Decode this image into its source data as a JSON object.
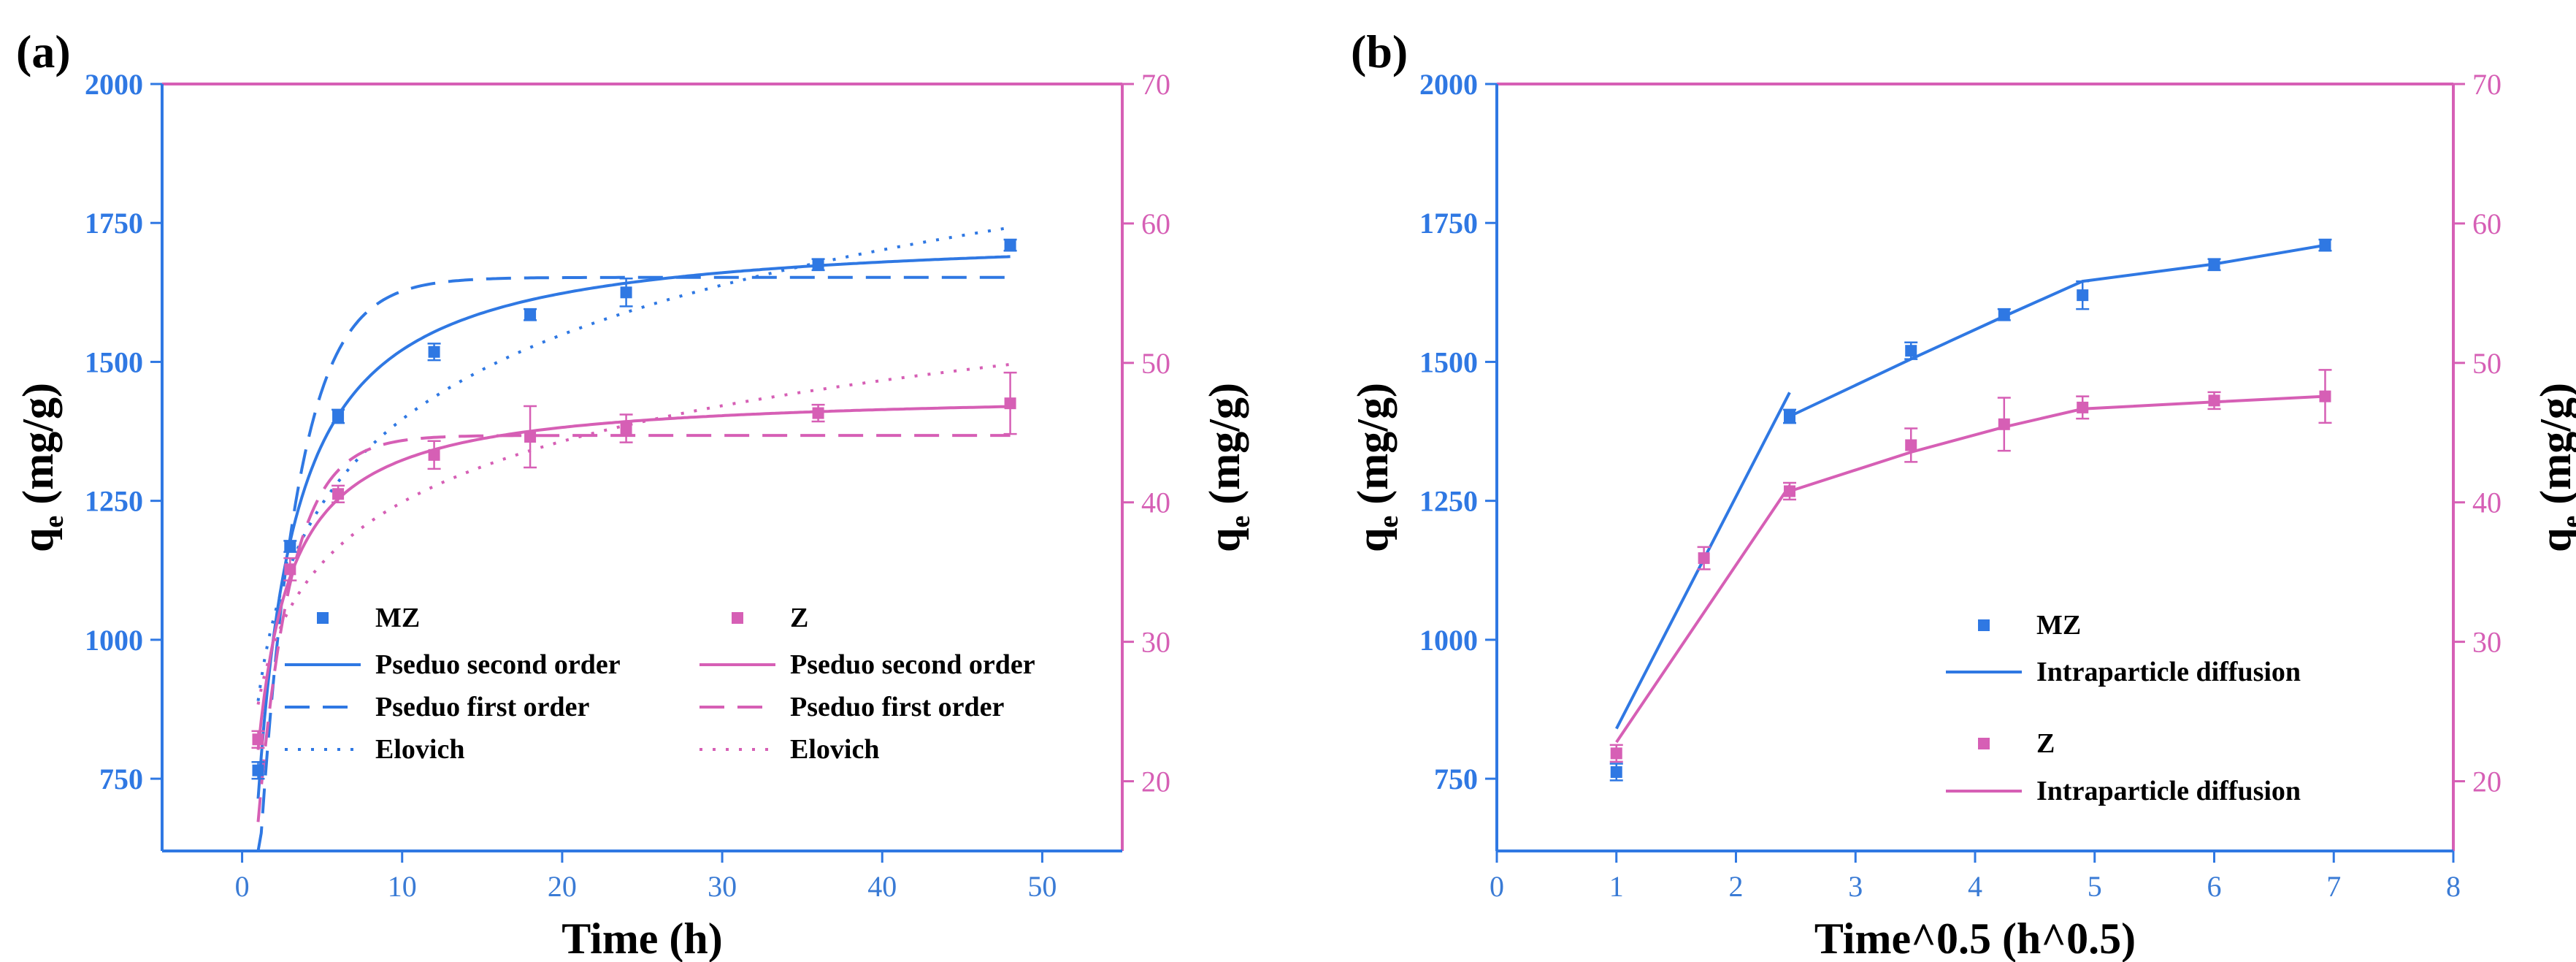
{
  "colors": {
    "mz": "#2f78e3",
    "z": "#d65fb5",
    "left_axis": "#2f78e3",
    "right_axis": "#d65fb5"
  },
  "chart_data": [
    {
      "panel_label": "(a)",
      "type": "scatter",
      "xlabel": "Time (h)",
      "ylabel_left": "q",
      "ylabel_left_sub": "e",
      "ylabel_left_unit": " (mg/g)",
      "ylabel_right": "q",
      "ylabel_right_sub": "e",
      "ylabel_right_unit": " (mg/g)",
      "xlim": [
        -5,
        55
      ],
      "ylim_left": [
        620,
        2000
      ],
      "ylim_right": [
        15,
        70
      ],
      "xticks": [
        0,
        10,
        20,
        30,
        40,
        50
      ],
      "yticks_left": [
        750,
        1000,
        1250,
        1500,
        1750,
        2000
      ],
      "yticks_right": [
        20,
        30,
        40,
        50,
        60,
        70
      ],
      "series": [
        {
          "name": "MZ",
          "axis": "left",
          "color": "#2f78e3",
          "x": [
            1,
            3,
            6,
            12,
            18,
            24,
            36,
            48
          ],
          "y": [
            765,
            1168,
            1402,
            1518,
            1585,
            1625,
            1675,
            1710
          ],
          "err": [
            15,
            10,
            12,
            15,
            10,
            25,
            10,
            10
          ]
        },
        {
          "name": "Z",
          "axis": "right",
          "color": "#d65fb5",
          "x": [
            1,
            3,
            6,
            12,
            18,
            24,
            36,
            48
          ],
          "y": [
            23.0,
            35.2,
            40.6,
            43.4,
            44.7,
            45.3,
            46.4,
            47.1
          ],
          "err": [
            0.6,
            0.8,
            0.6,
            1.0,
            2.2,
            1.0,
            0.6,
            2.2
          ]
        }
      ],
      "fits": [
        {
          "name": "Pseduo second order",
          "axis": "left",
          "color": "#2f78e3",
          "dash": "none",
          "model": "pso",
          "qe": 1740,
          "k": 0.0004,
          "x_range": [
            1,
            48
          ]
        },
        {
          "name": "Pseduo first order",
          "axis": "left",
          "color": "#2f78e3",
          "dash": "34 18",
          "model": "pfo",
          "qe": 1652,
          "k": 0.42,
          "x_range": [
            1,
            48
          ]
        },
        {
          "name": "Elovich",
          "axis": "left",
          "color": "#2f78e3",
          "dash": "4 14",
          "model": "elovich",
          "a": 890,
          "b": 220,
          "x_range": [
            1,
            48
          ]
        },
        {
          "name": "Pseduo second order",
          "axis": "right",
          "color": "#d65fb5",
          "dash": "none",
          "model": "pso",
          "qe": 48.0,
          "k": 0.018,
          "x_range": [
            1,
            48
          ]
        },
        {
          "name": "Pseduo first order",
          "axis": "right",
          "color": "#d65fb5",
          "dash": "34 18",
          "model": "pfo",
          "qe": 44.8,
          "k": 0.48,
          "x_range": [
            1,
            48
          ]
        },
        {
          "name": "Elovich",
          "axis": "right",
          "color": "#d65fb5",
          "dash": "4 14",
          "model": "elovich",
          "a": 25.5,
          "b": 6.3,
          "x_range": [
            1,
            48
          ]
        }
      ],
      "legend": {
        "col1": [
          {
            "kind": "point",
            "label": "MZ",
            "color": "#2f78e3"
          },
          {
            "kind": "line",
            "dash": "none",
            "label": "Pseduo second order",
            "color": "#2f78e3"
          },
          {
            "kind": "line",
            "dash": "34 18",
            "label": "Pseduo first order",
            "color": "#2f78e3"
          },
          {
            "kind": "line",
            "dash": "4 14",
            "label": "Elovich",
            "color": "#2f78e3"
          }
        ],
        "col2": [
          {
            "kind": "point",
            "label": "Z",
            "color": "#d65fb5"
          },
          {
            "kind": "line",
            "dash": "none",
            "label": "Pseduo second order",
            "color": "#d65fb5"
          },
          {
            "kind": "line",
            "dash": "34 18",
            "label": "Pseduo first order",
            "color": "#d65fb5"
          },
          {
            "kind": "line",
            "dash": "4 14",
            "label": "Elovich",
            "color": "#d65fb5"
          }
        ]
      }
    },
    {
      "panel_label": "(b)",
      "type": "scatter",
      "xlabel": "Time^0.5 (h^0.5)",
      "ylabel_left": "q",
      "ylabel_left_sub": "e",
      "ylabel_left_unit": " (mg/g)",
      "ylabel_right": "q",
      "ylabel_right_sub": "e",
      "ylabel_right_unit": " (mg/g)",
      "xlim": [
        0,
        8
      ],
      "ylim_left": [
        620,
        2000
      ],
      "ylim_right": [
        15,
        70
      ],
      "xticks": [
        0,
        1,
        2,
        3,
        4,
        5,
        6,
        7,
        8
      ],
      "yticks_left": [
        750,
        1000,
        1250,
        1500,
        1750,
        2000
      ],
      "yticks_right": [
        20,
        30,
        40,
        50,
        60,
        70
      ],
      "series": [
        {
          "name": "MZ",
          "axis": "left",
          "color": "#2f78e3",
          "x": [
            1.0,
            2.449,
            3.464,
            4.243,
            4.899,
            6.0,
            6.928
          ],
          "y": [
            762,
            1402,
            1520,
            1585,
            1620,
            1675,
            1710
          ],
          "err": [
            15,
            12,
            15,
            10,
            25,
            10,
            10
          ]
        },
        {
          "name": "Z",
          "axis": "right",
          "color": "#d65fb5",
          "x": [
            1.0,
            1.732,
            2.449,
            3.464,
            4.243,
            4.899,
            6.0,
            6.928
          ],
          "y": [
            22.0,
            36.0,
            40.8,
            44.1,
            45.6,
            46.8,
            47.3,
            47.6
          ],
          "err": [
            0.6,
            0.8,
            0.6,
            1.2,
            1.9,
            0.8,
            0.6,
            1.9
          ]
        }
      ],
      "fit_lines": [
        {
          "name": "Intraparticle diffusion",
          "axis": "left",
          "color": "#2f78e3",
          "segments": [
            [
              [
                1.0,
                840
              ],
              [
                2.449,
                1445
              ]
            ],
            [
              [
                2.449,
                1402
              ],
              [
                3.464,
                1505
              ],
              [
                4.243,
                1582
              ],
              [
                4.899,
                1645
              ],
              [
                6.0,
                1676
              ],
              [
                6.928,
                1710
              ]
            ]
          ]
        },
        {
          "name": "Intraparticle diffusion",
          "axis": "right",
          "color": "#d65fb5",
          "segments": [
            [
              [
                1.0,
                22.8
              ],
              [
                2.449,
                41.2
              ]
            ],
            [
              [
                2.449,
                40.8
              ],
              [
                3.464,
                43.6
              ],
              [
                4.243,
                45.4
              ],
              [
                4.899,
                46.7
              ],
              [
                6.0,
                47.2
              ],
              [
                6.928,
                47.6
              ]
            ]
          ]
        }
      ],
      "legend": [
        {
          "kind": "point",
          "label": "MZ",
          "color": "#2f78e3"
        },
        {
          "kind": "line",
          "dash": "none",
          "label": "Intraparticle diffusion",
          "color": "#2f78e3"
        },
        {
          "kind": "point",
          "label": "Z",
          "color": "#d65fb5"
        },
        {
          "kind": "line",
          "dash": "none",
          "label": "Intraparticle diffusion",
          "color": "#d65fb5"
        }
      ]
    }
  ]
}
